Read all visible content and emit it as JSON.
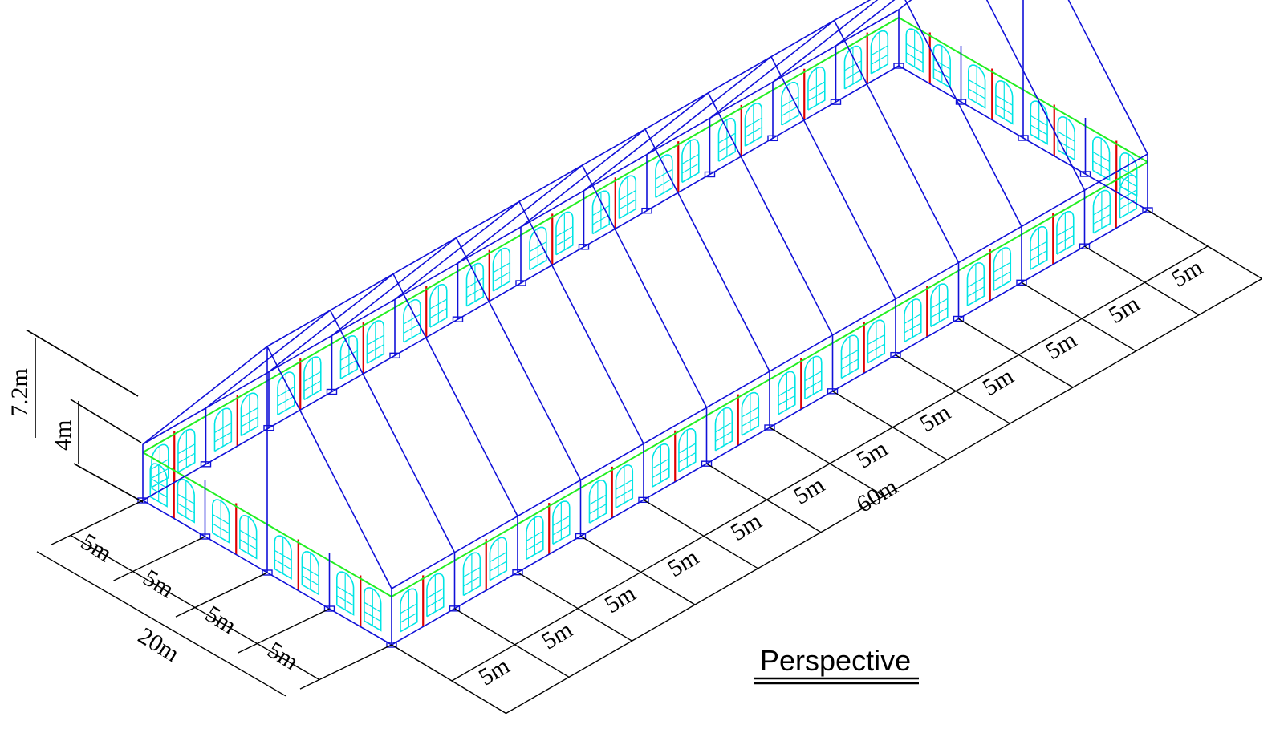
{
  "dimensions": {
    "height_total": "7.2m",
    "height_eave": "4m",
    "width_total": "20m",
    "length_total": "60m",
    "bay": "5m"
  },
  "counts": {
    "width_bays": 4,
    "length_bays": 12
  },
  "view_title": "Perspective",
  "colors": {
    "frame": "#1010d8",
    "rail": "#22ee22",
    "post": "#e00000",
    "window": "#00e5e5",
    "dimension": "#000000"
  }
}
